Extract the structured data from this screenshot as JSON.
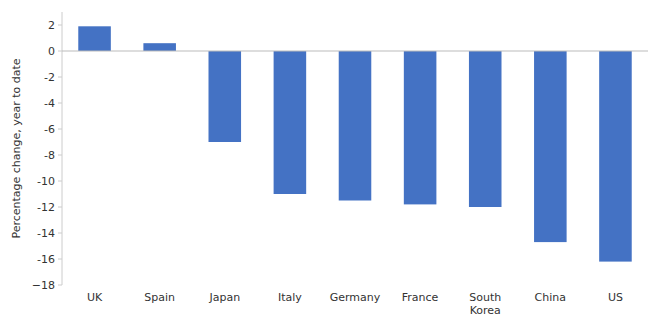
{
  "chart_data": {
    "type": "bar",
    "categories": [
      "UK",
      "Spain",
      "Japan",
      "Italy",
      "Germany",
      "France",
      "South\nKorea",
      "China",
      "US"
    ],
    "values": [
      1.9,
      0.6,
      -7.0,
      -11.0,
      -11.5,
      -11.8,
      -12.0,
      -14.7,
      -16.2
    ],
    "color": "#4472C4",
    "ylabel": "Percentage change, year to date",
    "ylim": [
      -18,
      3
    ],
    "yticks": [
      2,
      0,
      -2,
      -4,
      -6,
      -8,
      -10,
      -12,
      -14,
      -16,
      {
        "value": -18,
        "label": "−18"
      }
    ],
    "grid": false
  }
}
